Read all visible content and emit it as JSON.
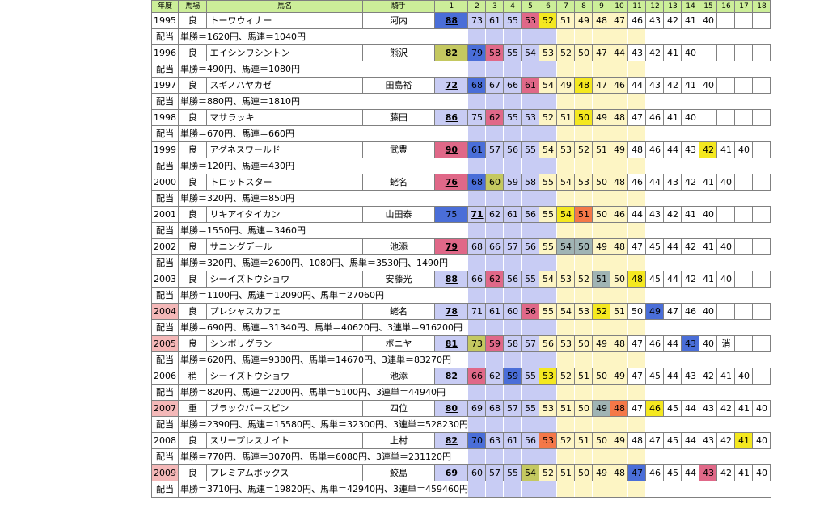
{
  "headers": {
    "year": "年度",
    "track": "馬場",
    "horse": "馬名",
    "jockey": "騎手",
    "numbers": [
      "1",
      "2",
      "3",
      "4",
      "5",
      "6",
      "7",
      "8",
      "9",
      "10",
      "11",
      "12",
      "13",
      "14",
      "15",
      "16",
      "17",
      "18"
    ]
  },
  "pay_label": "配当",
  "colors": {
    "header_bg": "#ccee99",
    "blue_zone": "#c8ccf4",
    "yellow_zone": "#fdf5c4",
    "dark_blue": "#4a6ed8",
    "pink": "#e06888",
    "yellow": "#f4e820",
    "olive": "#c4c860",
    "gray_teal": "#a0b4b4",
    "orange": "#f47848",
    "year_highlight": "#f4b8b8"
  },
  "rows": [
    {
      "year": "1995",
      "hl": false,
      "track": "良",
      "horse": "トーワウィナー",
      "jockey": "河内",
      "cells": [
        {
          "v": "88",
          "c": "dark_blue",
          "b": true
        },
        {
          "v": "73"
        },
        {
          "v": "61"
        },
        {
          "v": "55"
        },
        {
          "v": "53",
          "c": "pink"
        },
        {
          "v": "52",
          "c": "yellow"
        },
        {
          "v": "51"
        },
        {
          "v": "49"
        },
        {
          "v": "48"
        },
        {
          "v": "47"
        },
        {
          "v": "46"
        },
        {
          "v": "43"
        },
        {
          "v": "42"
        },
        {
          "v": "41"
        },
        {
          "v": "40"
        },
        {
          "v": ""
        },
        {
          "v": ""
        },
        {
          "v": ""
        }
      ],
      "payout": "単勝＝1620円、馬連＝1040円"
    },
    {
      "year": "1996",
      "hl": false,
      "track": "良",
      "horse": "エイシンワシントン",
      "jockey": "熊沢",
      "cells": [
        {
          "v": "82",
          "c": "olive",
          "b": true
        },
        {
          "v": "79",
          "c": "dark_blue"
        },
        {
          "v": "58",
          "c": "pink"
        },
        {
          "v": "55"
        },
        {
          "v": "54"
        },
        {
          "v": "53"
        },
        {
          "v": "52"
        },
        {
          "v": "50"
        },
        {
          "v": "47"
        },
        {
          "v": "44"
        },
        {
          "v": "43"
        },
        {
          "v": "42"
        },
        {
          "v": "41"
        },
        {
          "v": "40"
        },
        {
          "v": ""
        },
        {
          "v": ""
        },
        {
          "v": ""
        },
        {
          "v": ""
        }
      ],
      "payout": "単勝＝490円、馬連＝1080円"
    },
    {
      "year": "1997",
      "hl": false,
      "track": "良",
      "horse": "スギノハヤカゼ",
      "jockey": "田島裕",
      "cells": [
        {
          "v": "72",
          "b": true
        },
        {
          "v": "68",
          "c": "dark_blue"
        },
        {
          "v": "67"
        },
        {
          "v": "66"
        },
        {
          "v": "61",
          "c": "pink"
        },
        {
          "v": "54"
        },
        {
          "v": "49"
        },
        {
          "v": "48",
          "c": "yellow"
        },
        {
          "v": "47"
        },
        {
          "v": "46"
        },
        {
          "v": "44"
        },
        {
          "v": "43"
        },
        {
          "v": "42"
        },
        {
          "v": "41"
        },
        {
          "v": "40"
        },
        {
          "v": ""
        },
        {
          "v": ""
        },
        {
          "v": ""
        }
      ],
      "payout": "単勝＝880円、馬連＝1810円"
    },
    {
      "year": "1998",
      "hl": false,
      "track": "良",
      "horse": "マサラッキ",
      "jockey": "藤田",
      "cells": [
        {
          "v": "86",
          "b": true
        },
        {
          "v": "75"
        },
        {
          "v": "62",
          "c": "pink"
        },
        {
          "v": "55"
        },
        {
          "v": "53"
        },
        {
          "v": "52"
        },
        {
          "v": "51"
        },
        {
          "v": "50",
          "c": "yellow"
        },
        {
          "v": "49"
        },
        {
          "v": "48"
        },
        {
          "v": "47"
        },
        {
          "v": "46"
        },
        {
          "v": "41"
        },
        {
          "v": "40"
        },
        {
          "v": ""
        },
        {
          "v": ""
        },
        {
          "v": ""
        },
        {
          "v": ""
        }
      ],
      "payout": "単勝＝670円、馬連＝660円"
    },
    {
      "year": "1999",
      "hl": false,
      "track": "良",
      "horse": "アグネスワールド",
      "jockey": "武豊",
      "cells": [
        {
          "v": "90",
          "c": "pink",
          "b": true
        },
        {
          "v": "61",
          "c": "dark_blue"
        },
        {
          "v": "57"
        },
        {
          "v": "56"
        },
        {
          "v": "55"
        },
        {
          "v": "54"
        },
        {
          "v": "53"
        },
        {
          "v": "52"
        },
        {
          "v": "51"
        },
        {
          "v": "49"
        },
        {
          "v": "48"
        },
        {
          "v": "46"
        },
        {
          "v": "44"
        },
        {
          "v": "43"
        },
        {
          "v": "42",
          "c": "yellow"
        },
        {
          "v": "41"
        },
        {
          "v": "40"
        },
        {
          "v": ""
        }
      ],
      "payout": "単勝＝120円、馬連＝430円"
    },
    {
      "year": "2000",
      "hl": false,
      "track": "良",
      "horse": "トロットスター",
      "jockey": "蛯名",
      "cells": [
        {
          "v": "76",
          "c": "pink",
          "b": true
        },
        {
          "v": "68",
          "c": "dark_blue"
        },
        {
          "v": "60",
          "c": "olive"
        },
        {
          "v": "59"
        },
        {
          "v": "58"
        },
        {
          "v": "55"
        },
        {
          "v": "54"
        },
        {
          "v": "53"
        },
        {
          "v": "50"
        },
        {
          "v": "48"
        },
        {
          "v": "46"
        },
        {
          "v": "44"
        },
        {
          "v": "43"
        },
        {
          "v": "42"
        },
        {
          "v": "41"
        },
        {
          "v": "40"
        },
        {
          "v": ""
        },
        {
          "v": ""
        }
      ],
      "payout": "単勝＝320円、馬連＝850円"
    },
    {
      "year": "2001",
      "hl": false,
      "track": "良",
      "horse": "リキアイタイカン",
      "jockey": "山田泰",
      "cells": [
        {
          "v": "75",
          "c": "dark_blue"
        },
        {
          "v": "71",
          "b": true
        },
        {
          "v": "62"
        },
        {
          "v": "61"
        },
        {
          "v": "56"
        },
        {
          "v": "55"
        },
        {
          "v": "54",
          "c": "yellow"
        },
        {
          "v": "51",
          "c": "orange"
        },
        {
          "v": "50"
        },
        {
          "v": "46"
        },
        {
          "v": "44"
        },
        {
          "v": "43"
        },
        {
          "v": "42"
        },
        {
          "v": "41"
        },
        {
          "v": "40"
        },
        {
          "v": ""
        },
        {
          "v": ""
        },
        {
          "v": ""
        }
      ],
      "payout": "単勝＝1550円、馬連＝3460円"
    },
    {
      "year": "2002",
      "hl": false,
      "track": "良",
      "horse": "サニングデール",
      "jockey": "池添",
      "cells": [
        {
          "v": "79",
          "c": "pink",
          "b": true
        },
        {
          "v": "68"
        },
        {
          "v": "66"
        },
        {
          "v": "57"
        },
        {
          "v": "56"
        },
        {
          "v": "55"
        },
        {
          "v": "54",
          "c": "gray_teal"
        },
        {
          "v": "50",
          "c": "gray_teal"
        },
        {
          "v": "49"
        },
        {
          "v": "48"
        },
        {
          "v": "47"
        },
        {
          "v": "45"
        },
        {
          "v": "44"
        },
        {
          "v": "42"
        },
        {
          "v": "41"
        },
        {
          "v": "40"
        },
        {
          "v": ""
        },
        {
          "v": ""
        }
      ],
      "payout": "単勝＝320円、馬連＝2600円、1080円、馬単＝3530円、1490円"
    },
    {
      "year": "2003",
      "hl": false,
      "track": "良",
      "horse": "シーイズトウショウ",
      "jockey": "安藤光",
      "cells": [
        {
          "v": "88",
          "b": true
        },
        {
          "v": "66"
        },
        {
          "v": "62",
          "c": "pink"
        },
        {
          "v": "56"
        },
        {
          "v": "55"
        },
        {
          "v": "54"
        },
        {
          "v": "53"
        },
        {
          "v": "52"
        },
        {
          "v": "51",
          "c": "gray_teal"
        },
        {
          "v": "50"
        },
        {
          "v": "48",
          "c": "yellow"
        },
        {
          "v": "45"
        },
        {
          "v": "44"
        },
        {
          "v": "42"
        },
        {
          "v": "41"
        },
        {
          "v": "40"
        },
        {
          "v": ""
        },
        {
          "v": ""
        }
      ],
      "payout": "単勝＝1100円、馬連＝12090円、馬単＝27060円"
    },
    {
      "year": "2004",
      "hl": true,
      "track": "良",
      "horse": "プレシャスカフェ",
      "jockey": "蛯名",
      "cells": [
        {
          "v": "78",
          "b": true
        },
        {
          "v": "71"
        },
        {
          "v": "61"
        },
        {
          "v": "60"
        },
        {
          "v": "56",
          "c": "pink"
        },
        {
          "v": "55"
        },
        {
          "v": "54"
        },
        {
          "v": "53"
        },
        {
          "v": "52",
          "c": "yellow"
        },
        {
          "v": "51"
        },
        {
          "v": "50"
        },
        {
          "v": "49",
          "c": "dark_blue"
        },
        {
          "v": "47"
        },
        {
          "v": "46"
        },
        {
          "v": "40"
        },
        {
          "v": ""
        },
        {
          "v": ""
        },
        {
          "v": ""
        }
      ],
      "payout": "単勝＝690円、馬連＝31340円、馬単＝40620円、3連単＝916200円"
    },
    {
      "year": "2005",
      "hl": true,
      "track": "良",
      "horse": "シンボリグラン",
      "jockey": "ボニヤ",
      "cells": [
        {
          "v": "81",
          "b": true
        },
        {
          "v": "73",
          "c": "olive"
        },
        {
          "v": "59",
          "c": "pink"
        },
        {
          "v": "58"
        },
        {
          "v": "57"
        },
        {
          "v": "56"
        },
        {
          "v": "53"
        },
        {
          "v": "50"
        },
        {
          "v": "49"
        },
        {
          "v": "48"
        },
        {
          "v": "47"
        },
        {
          "v": "46"
        },
        {
          "v": "44"
        },
        {
          "v": "43",
          "c": "dark_blue"
        },
        {
          "v": "40"
        },
        {
          "v": "消"
        },
        {
          "v": ""
        },
        {
          "v": ""
        }
      ],
      "payout": "単勝＝620円、馬連＝9380円、馬単＝14670円、3連単＝83270円"
    },
    {
      "year": "2006",
      "hl": false,
      "track": "稍",
      "horse": "シーイズトウショウ",
      "jockey": "池添",
      "cells": [
        {
          "v": "82",
          "b": true
        },
        {
          "v": "66",
          "c": "pink"
        },
        {
          "v": "62"
        },
        {
          "v": "59",
          "c": "dark_blue"
        },
        {
          "v": "55"
        },
        {
          "v": "53",
          "c": "yellow"
        },
        {
          "v": "52"
        },
        {
          "v": "51"
        },
        {
          "v": "50"
        },
        {
          "v": "49"
        },
        {
          "v": "47"
        },
        {
          "v": "45"
        },
        {
          "v": "44"
        },
        {
          "v": "43"
        },
        {
          "v": "42"
        },
        {
          "v": "41"
        },
        {
          "v": "40"
        },
        {
          "v": ""
        }
      ],
      "payout": "単勝＝820円、馬連＝2200円、馬単＝5100円、3連単＝44940円"
    },
    {
      "year": "2007",
      "hl": true,
      "track": "重",
      "horse": "ブラックバースピン",
      "jockey": "四位",
      "cells": [
        {
          "v": "80",
          "b": true
        },
        {
          "v": "69"
        },
        {
          "v": "68"
        },
        {
          "v": "57"
        },
        {
          "v": "55"
        },
        {
          "v": "53"
        },
        {
          "v": "51"
        },
        {
          "v": "50"
        },
        {
          "v": "49",
          "c": "gray_teal"
        },
        {
          "v": "48",
          "c": "orange"
        },
        {
          "v": "47"
        },
        {
          "v": "46",
          "c": "yellow"
        },
        {
          "v": "45"
        },
        {
          "v": "44"
        },
        {
          "v": "43"
        },
        {
          "v": "42"
        },
        {
          "v": "41"
        },
        {
          "v": "40"
        }
      ],
      "payout": "単勝＝2390円、馬連＝15580円、馬単＝32300円、3連単＝528230円"
    },
    {
      "year": "2008",
      "hl": false,
      "track": "良",
      "horse": "スリープレスナイト",
      "jockey": "上村",
      "cells": [
        {
          "v": "82",
          "b": true
        },
        {
          "v": "70",
          "c": "dark_blue"
        },
        {
          "v": "63"
        },
        {
          "v": "61"
        },
        {
          "v": "56"
        },
        {
          "v": "53",
          "c": "orange"
        },
        {
          "v": "52"
        },
        {
          "v": "51"
        },
        {
          "v": "50"
        },
        {
          "v": "49"
        },
        {
          "v": "48"
        },
        {
          "v": "47"
        },
        {
          "v": "45"
        },
        {
          "v": "44"
        },
        {
          "v": "43"
        },
        {
          "v": "42"
        },
        {
          "v": "41",
          "c": "yellow"
        },
        {
          "v": "40"
        }
      ],
      "payout": "単勝＝770円、馬連＝3070円、馬単＝6080円、3連単＝231120円"
    },
    {
      "year": "2009",
      "hl": true,
      "track": "良",
      "horse": "プレミアムボックス",
      "jockey": "鮫島",
      "cells": [
        {
          "v": "69",
          "b": true
        },
        {
          "v": "60"
        },
        {
          "v": "57"
        },
        {
          "v": "55"
        },
        {
          "v": "54",
          "c": "olive"
        },
        {
          "v": "52"
        },
        {
          "v": "51"
        },
        {
          "v": "50"
        },
        {
          "v": "49"
        },
        {
          "v": "48"
        },
        {
          "v": "47",
          "c": "dark_blue"
        },
        {
          "v": "46"
        },
        {
          "v": "45"
        },
        {
          "v": "44"
        },
        {
          "v": "43",
          "c": "pink"
        },
        {
          "v": "42"
        },
        {
          "v": "41"
        },
        {
          "v": "40"
        }
      ],
      "payout": "単勝＝3710円、馬連＝19820円、馬単＝42940円、3連単＝459460円"
    }
  ]
}
